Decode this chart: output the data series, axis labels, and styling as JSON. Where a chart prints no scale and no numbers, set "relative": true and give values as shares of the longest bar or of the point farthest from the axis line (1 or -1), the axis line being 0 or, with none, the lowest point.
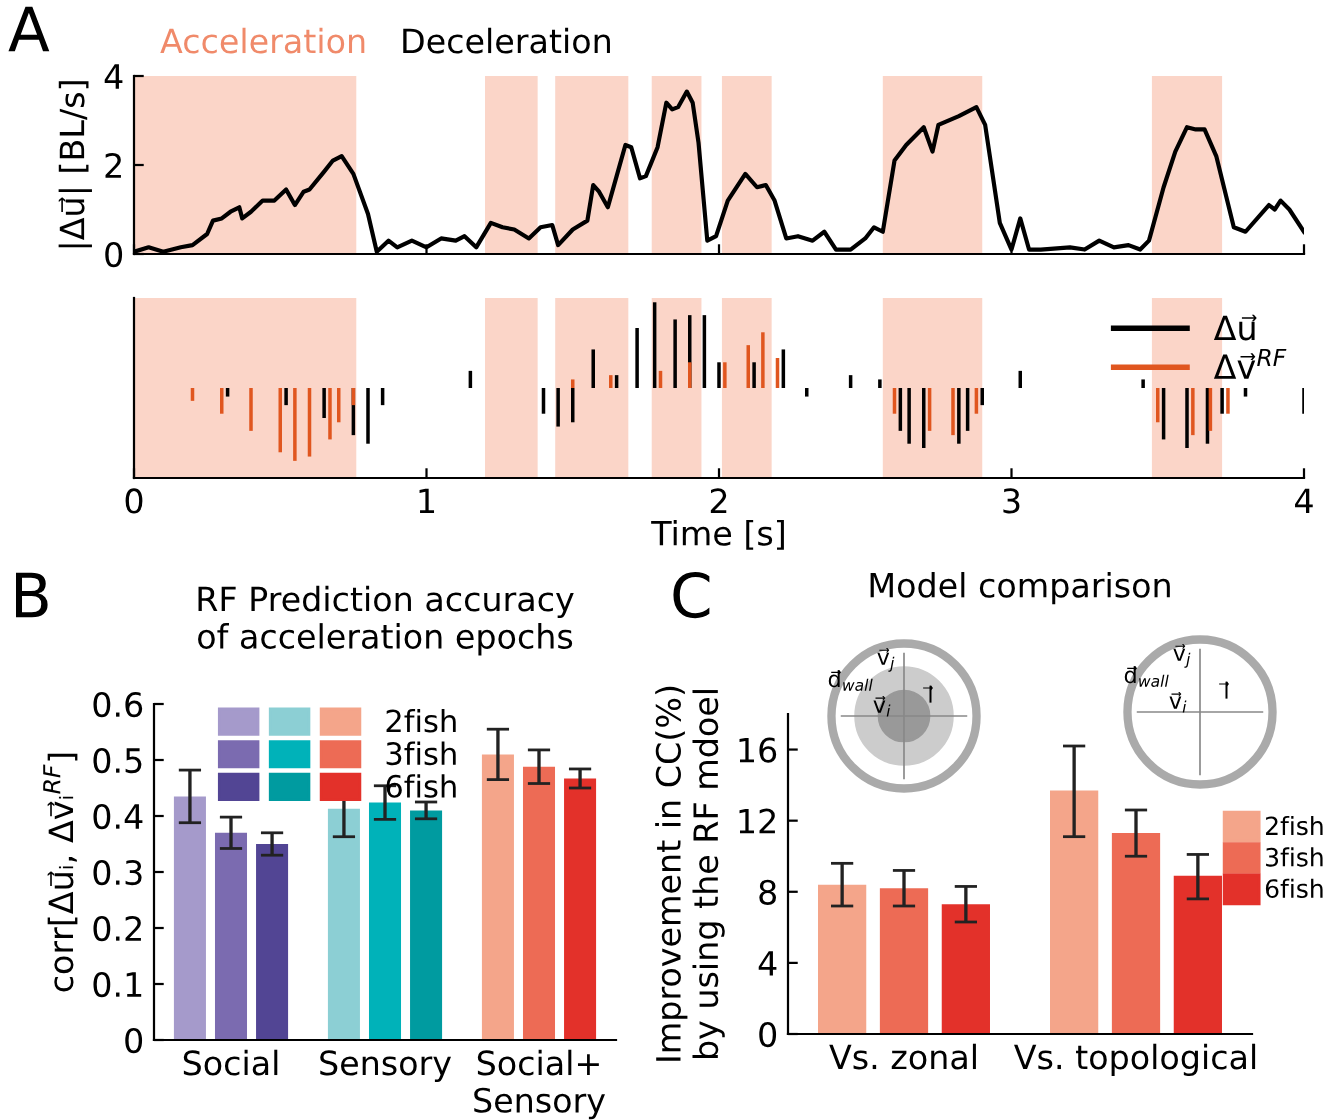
{
  "chart_data": [
    {
      "type": "line",
      "ylabel": "|Δu⃗| [BL/s]",
      "xlim": [
        0,
        4
      ],
      "xticks": [
        0,
        1,
        2,
        3,
        4
      ],
      "ylim": [
        0,
        4
      ],
      "yticks": [
        0,
        2,
        4
      ],
      "tick_labels": "y",
      "grid": false,
      "annotations": [
        "A",
        "Acceleration",
        "Deceleration"
      ],
      "bands": [
        {
          "axis": "x",
          "from": 0,
          "to": 0.76,
          "color": "#fbd5c8"
        },
        {
          "axis": "x",
          "from": 1.2,
          "to": 1.38,
          "color": "#fbd5c8"
        },
        {
          "axis": "x",
          "from": 1.44,
          "to": 1.69,
          "color": "#fbd5c8"
        },
        {
          "axis": "x",
          "from": 1.77,
          "to": 1.94,
          "color": "#fbd5c8"
        },
        {
          "axis": "x",
          "from": 2.01,
          "to": 2.18,
          "color": "#fbd5c8"
        },
        {
          "axis": "x",
          "from": 2.56,
          "to": 2.9,
          "color": "#fbd5c8"
        },
        {
          "axis": "x",
          "from": 3.48,
          "to": 3.72,
          "color": "#fbd5c8"
        }
      ],
      "series": [
        {
          "color": "#000000",
          "x": [
            0,
            0.05,
            0.1,
            0.16,
            0.2,
            0.25,
            0.27,
            0.3,
            0.33,
            0.36,
            0.37,
            0.4,
            0.44,
            0.48,
            0.52,
            0.55,
            0.58,
            0.6,
            0.65,
            0.68,
            0.71,
            0.75,
            0.8,
            0.83,
            0.87,
            0.9,
            0.95,
            1.0,
            1.05,
            1.1,
            1.13,
            1.17,
            1.22,
            1.26,
            1.3,
            1.35,
            1.39,
            1.43,
            1.45,
            1.5,
            1.55,
            1.57,
            1.59,
            1.62,
            1.65,
            1.68,
            1.7,
            1.73,
            1.75,
            1.79,
            1.82,
            1.84,
            1.86,
            1.89,
            1.91,
            1.93,
            1.96,
            1.99,
            2.03,
            2.09,
            2.13,
            2.16,
            2.19,
            2.23,
            2.27,
            2.32,
            2.36,
            2.4,
            2.45,
            2.5,
            2.53,
            2.56,
            2.6,
            2.64,
            2.7,
            2.73,
            2.75,
            2.82,
            2.88,
            2.91,
            2.96,
            3.0,
            3.03,
            3.06,
            3.1,
            3.2,
            3.25,
            3.3,
            3.35,
            3.4,
            3.44,
            3.47,
            3.52,
            3.56,
            3.6,
            3.63,
            3.66,
            3.7,
            3.76,
            3.8,
            3.88,
            3.9,
            3.92,
            3.95,
            4.0
          ],
          "values": [
            0.05,
            0.15,
            0.05,
            0.15,
            0.2,
            0.45,
            0.75,
            0.8,
            0.95,
            1.05,
            0.8,
            0.95,
            1.2,
            1.2,
            1.45,
            1.1,
            1.4,
            1.45,
            1.85,
            2.1,
            2.2,
            1.8,
            0.9,
            0.05,
            0.3,
            0.15,
            0.3,
            0.15,
            0.35,
            0.3,
            0.4,
            0.15,
            0.7,
            0.6,
            0.55,
            0.35,
            0.6,
            0.65,
            0.2,
            0.55,
            0.75,
            1.55,
            1.4,
            1.05,
            1.75,
            2.45,
            2.4,
            1.7,
            1.75,
            2.4,
            3.4,
            3.25,
            3.3,
            3.65,
            3.4,
            2.5,
            0.3,
            0.4,
            1.2,
            1.8,
            1.5,
            1.55,
            1.2,
            0.35,
            0.4,
            0.3,
            0.5,
            0.1,
            0.1,
            0.35,
            0.6,
            0.5,
            2.1,
            2.45,
            2.85,
            2.3,
            2.9,
            3.1,
            3.3,
            2.9,
            0.7,
            0.1,
            0.8,
            0.1,
            0.1,
            0.15,
            0.1,
            0.3,
            0.15,
            0.2,
            0.1,
            0.3,
            1.5,
            2.3,
            2.85,
            2.8,
            2.8,
            2.2,
            0.6,
            0.5,
            1.1,
            1.0,
            1.2,
            1.0,
            0.5
          ]
        }
      ]
    },
    {
      "type": "bar",
      "relative": true,
      "xlabel": "Time [s]",
      "xlim": [
        0,
        4
      ],
      "xticks": [
        0,
        1,
        2,
        3,
        4
      ],
      "tick_labels": "x",
      "legend": "top right",
      "bands": [
        {
          "axis": "x",
          "from": 0,
          "to": 0.76,
          "color": "#fbd5c8"
        },
        {
          "axis": "x",
          "from": 1.2,
          "to": 1.38,
          "color": "#fbd5c8"
        },
        {
          "axis": "x",
          "from": 1.44,
          "to": 1.69,
          "color": "#fbd5c8"
        },
        {
          "axis": "x",
          "from": 1.77,
          "to": 1.94,
          "color": "#fbd5c8"
        },
        {
          "axis": "x",
          "from": 2.01,
          "to": 2.18,
          "color": "#fbd5c8"
        },
        {
          "axis": "x",
          "from": 2.56,
          "to": 2.9,
          "color": "#fbd5c8"
        },
        {
          "axis": "x",
          "from": 3.48,
          "to": 3.72,
          "color": "#fbd5c8"
        }
      ],
      "series": [
        {
          "name": "Δu⃗",
          "color": "#000000",
          "x": [
            0.32,
            0.52,
            0.65,
            0.75,
            0.8,
            0.85,
            1.15,
            1.4,
            1.45,
            1.5,
            1.57,
            1.65,
            1.72,
            1.78,
            1.85,
            1.9,
            1.95,
            2.0,
            2.12,
            2.22,
            2.3,
            2.45,
            2.55,
            2.62,
            2.65,
            2.7,
            2.82,
            2.85,
            2.9,
            3.03,
            3.45,
            3.52,
            3.6,
            3.67,
            3.72,
            3.8,
            4.0
          ],
          "values": [
            -0.1,
            -0.2,
            -0.35,
            -0.55,
            -0.65,
            -0.2,
            0.2,
            -0.3,
            -0.45,
            -0.4,
            0.45,
            0.15,
            0.7,
            1.0,
            0.8,
            0.85,
            0.85,
            0.3,
            0.3,
            0.45,
            -0.1,
            0.15,
            0.1,
            -0.5,
            -0.65,
            -0.7,
            -0.65,
            -0.5,
            -0.2,
            0.2,
            0.1,
            -0.6,
            -0.7,
            -0.65,
            -0.3,
            -0.1,
            -0.3
          ]
        },
        {
          "name": "Δv⃗$^{RF}$",
          "color": "#e0561f",
          "x": [
            0.2,
            0.3,
            0.4,
            0.5,
            0.55,
            0.6,
            0.67,
            0.7,
            0.75,
            1.5,
            1.63,
            1.8,
            1.9,
            2.02,
            2.1,
            2.15,
            2.2,
            2.6,
            2.72,
            2.8,
            2.88,
            3.5,
            3.62,
            3.68,
            3.74
          ],
          "values": [
            -0.15,
            -0.3,
            -0.5,
            -0.75,
            -0.85,
            -0.8,
            -0.6,
            -0.4,
            -0.2,
            0.1,
            0.15,
            0.2,
            0.3,
            0.3,
            0.5,
            0.65,
            0.35,
            -0.3,
            -0.5,
            -0.55,
            -0.3,
            -0.4,
            -0.55,
            -0.5,
            -0.3
          ]
        }
      ]
    },
    {
      "type": "bar",
      "title": "RF Prediction accuracy\nof acceleration epochs",
      "ylabel": "corr[Δu⃗ᵢ, Δv⃗ᵢ$^{RF}$]",
      "categories": [
        "Social",
        "Sensory",
        "Social+\nSensory"
      ],
      "ylim": [
        0,
        0.6
      ],
      "yticks": [
        0,
        0.1,
        0.2,
        0.3,
        0.4,
        0.5,
        0.6
      ],
      "grid": false,
      "legend": "top",
      "annotations": [
        "B"
      ],
      "series": [
        {
          "name": "2fish",
          "colors": [
            "#a59acb",
            "#8ccfd4",
            "#f4a58a"
          ],
          "values": [
            0.435,
            0.413,
            0.51
          ],
          "errors": [
            0.047,
            0.05,
            0.045
          ]
        },
        {
          "name": "3fish",
          "colors": [
            "#7b6bb0",
            "#00b2b9",
            "#ed6b55"
          ],
          "values": [
            0.37,
            0.424,
            0.488
          ],
          "errors": [
            0.028,
            0.03,
            0.03
          ]
        },
        {
          "name": "6fish",
          "colors": [
            "#524594",
            "#009ba0",
            "#e3312a"
          ],
          "values": [
            0.35,
            0.41,
            0.467
          ],
          "errors": [
            0.02,
            0.015,
            0.017
          ]
        }
      ]
    },
    {
      "type": "bar",
      "title": "Model comparison",
      "ylabel": "Improvement in CC(%)\nby using the RF mdoel",
      "categories": [
        "Vs. zonal",
        "Vs. topological"
      ],
      "ylim": [
        0,
        18
      ],
      "yticks": [
        0,
        4,
        8,
        12,
        16
      ],
      "grid": false,
      "legend": "right",
      "annotations": [
        "C",
        "d⃗$_{wall}$",
        "v⃗$_{j}$",
        "v⃗$_{i}$",
        "l⃗",
        "d⃗$_{wall}$",
        "v⃗$_{j}$",
        "v⃗$_{i}$",
        "l⃗"
      ],
      "series": [
        {
          "name": "2fish",
          "color": "#f4a58a",
          "values": [
            8.4,
            13.7
          ],
          "errors": [
            [
              7.2,
              9.6
            ],
            [
              11.1,
              16.2
            ]
          ]
        },
        {
          "name": "3fish",
          "color": "#ed6b55",
          "values": [
            8.2,
            11.3
          ],
          "errors": [
            [
              7.2,
              9.2
            ],
            [
              10.0,
              12.6
            ]
          ]
        },
        {
          "name": "6fish",
          "color": "#e3312a",
          "values": [
            7.3,
            8.9
          ],
          "errors": [
            [
              6.3,
              8.3
            ],
            [
              7.6,
              10.1
            ]
          ]
        }
      ]
    }
  ]
}
